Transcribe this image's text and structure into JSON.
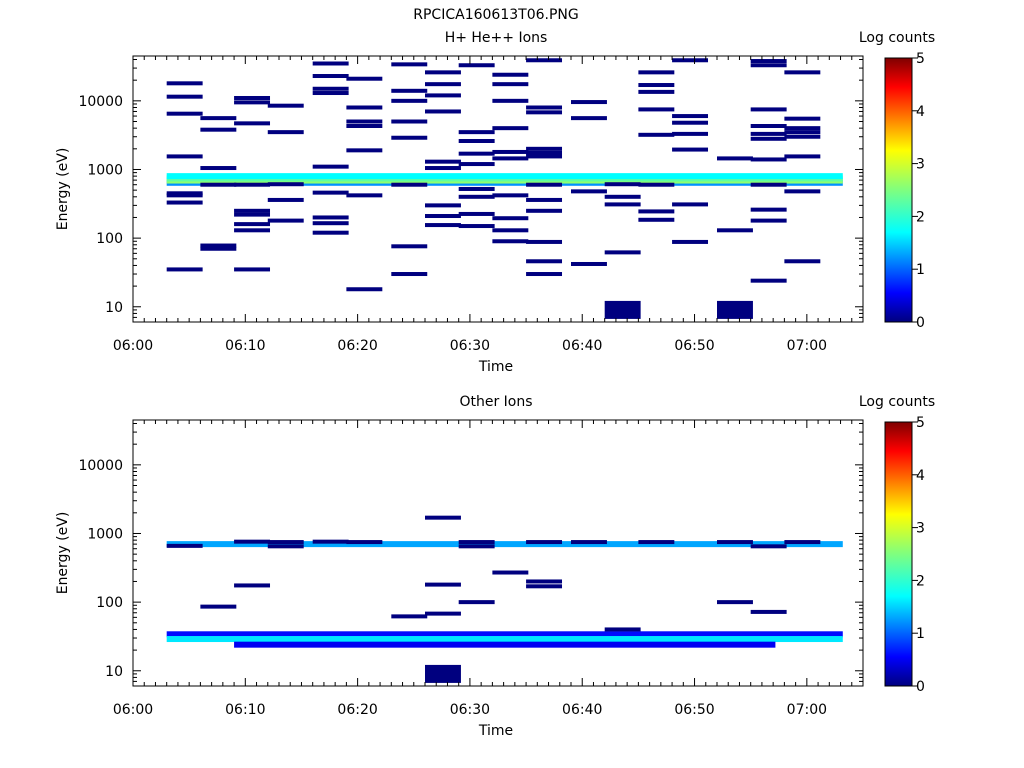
{
  "figure_title": "RPCICA160613T06.PNG",
  "chart_data": [
    {
      "type": "heatmap",
      "title": "H+ He++ Ions",
      "xlabel": "Time",
      "ylabel": "Energy (eV)",
      "y_scale": "log",
      "ylim": [
        6,
        45000
      ],
      "x_ticks": [
        "06:00",
        "06:10",
        "06:20",
        "06:30",
        "06:40",
        "06:50",
        "07:00"
      ],
      "y_ticks": [
        {
          "value": 10,
          "label": "10"
        },
        {
          "value": 100,
          "label": "100"
        },
        {
          "value": 1000,
          "label": "1000"
        },
        {
          "value": 10000,
          "label": "10000"
        }
      ],
      "colorbar": {
        "label": "Log counts",
        "range": [
          0,
          5
        ],
        "ticks": [
          "0",
          "1",
          "2",
          "3",
          "4",
          "5"
        ]
      },
      "bands": [
        {
          "t0": "06:03",
          "t1": "07:00",
          "e": 640,
          "log_counts": 1.2
        },
        {
          "t0": "06:03",
          "t1": "07:00",
          "e": 690,
          "log_counts": 2.6
        },
        {
          "t0": "06:03",
          "t1": "07:00",
          "e": 740,
          "log_counts": 2.3
        },
        {
          "t0": "06:03",
          "t1": "07:00",
          "e": 800,
          "log_counts": 1.7
        }
      ],
      "cells": [
        {
          "t": "06:03",
          "e": [
            18000,
            11500,
            6500,
            1550,
            450,
            420,
            330,
            35
          ]
        },
        {
          "t": "06:06",
          "e": [
            5600,
            3800,
            1050,
            600,
            70,
            78
          ]
        },
        {
          "t": "06:09",
          "e": [
            11000,
            9500,
            4700,
            600,
            250,
            220,
            160,
            130,
            35
          ]
        },
        {
          "t": "06:12",
          "e": [
            8500,
            3500,
            610,
            360,
            180
          ]
        },
        {
          "t": "06:16",
          "e": [
            35000,
            23000,
            15000,
            13000,
            1100,
            460,
            200,
            165,
            120
          ]
        },
        {
          "t": "06:19",
          "e": [
            21000,
            8000,
            5000,
            4300,
            1900,
            420,
            18
          ]
        },
        {
          "t": "06:23",
          "e": [
            34000,
            14000,
            10000,
            5000,
            2900,
            600,
            76,
            30
          ]
        },
        {
          "t": "06:26",
          "e": [
            26000,
            17500,
            12000,
            7000,
            1300,
            1050,
            300,
            210,
            155
          ]
        },
        {
          "t": "06:29",
          "e": [
            33000,
            3500,
            2600,
            1700,
            1200,
            520,
            400,
            225,
            150
          ]
        },
        {
          "t": "06:32",
          "e": [
            24000,
            17500,
            10000,
            4000,
            1800,
            1450,
            420,
            195,
            130,
            90
          ]
        },
        {
          "t": "06:35",
          "e": [
            39000,
            8000,
            6800,
            2000,
            1750,
            1550,
            600,
            360,
            250,
            88,
            46,
            30
          ]
        },
        {
          "t": "06:39",
          "e": [
            9600,
            5600,
            480,
            42
          ]
        },
        {
          "t": "06:42",
          "e": [
            610,
            400,
            310,
            62,
            9
          ]
        },
        {
          "t": "06:45",
          "e": [
            26000,
            17000,
            13500,
            7500,
            3200,
            600,
            245,
            185
          ]
        },
        {
          "t": "06:48",
          "e": [
            39000,
            6000,
            4800,
            3300,
            1950,
            310,
            88
          ]
        },
        {
          "t": "06:52",
          "e": [
            1450,
            130,
            9
          ]
        },
        {
          "t": "06:55",
          "e": [
            38000,
            33000,
            7500,
            4300,
            3300,
            2800,
            1400,
            600,
            260,
            180,
            24
          ]
        },
        {
          "t": "06:58",
          "e": [
            26000,
            5500,
            4000,
            3500,
            3000,
            1550,
            480,
            46
          ]
        }
      ]
    },
    {
      "type": "heatmap",
      "title": "Other Ions",
      "xlabel": "Time",
      "ylabel": "Energy (eV)",
      "y_scale": "log",
      "ylim": [
        6,
        45000
      ],
      "x_ticks": [
        "06:00",
        "06:10",
        "06:20",
        "06:30",
        "06:40",
        "06:50",
        "07:00"
      ],
      "y_ticks": [
        {
          "value": 10,
          "label": "10"
        },
        {
          "value": 100,
          "label": "100"
        },
        {
          "value": 1000,
          "label": "1000"
        },
        {
          "value": 10000,
          "label": "10000"
        }
      ],
      "colorbar": {
        "label": "Log counts",
        "range": [
          0,
          5
        ],
        "ticks": [
          "0",
          "1",
          "2",
          "3",
          "4",
          "5"
        ]
      },
      "bands": [
        {
          "t0": "06:03",
          "t1": "07:00",
          "e": 700,
          "log_counts": 1.3
        },
        {
          "t0": "06:03",
          "t1": "07:00",
          "e": 34,
          "log_counts": 0.6
        },
        {
          "t0": "06:03",
          "t1": "07:00",
          "e": 29,
          "log_counts": 1.6
        },
        {
          "t0": "06:09",
          "t1": "06:54",
          "e": 24,
          "log_counts": 0.5
        }
      ],
      "cells": [
        {
          "t": "06:03",
          "e": [
            660
          ]
        },
        {
          "t": "06:06",
          "e": [
            86
          ]
        },
        {
          "t": "06:09",
          "e": [
            760,
            175
          ]
        },
        {
          "t": "06:12",
          "e": [
            750,
            650
          ]
        },
        {
          "t": "06:16",
          "e": [
            760
          ]
        },
        {
          "t": "06:19",
          "e": [
            750
          ]
        },
        {
          "t": "06:23",
          "e": [
            62
          ]
        },
        {
          "t": "06:26",
          "e": [
            1700,
            180,
            68,
            9
          ]
        },
        {
          "t": "06:29",
          "e": [
            750,
            650,
            100
          ]
        },
        {
          "t": "06:32",
          "e": [
            270
          ]
        },
        {
          "t": "06:35",
          "e": [
            750,
            200,
            170
          ]
        },
        {
          "t": "06:39",
          "e": [
            750
          ]
        },
        {
          "t": "06:42",
          "e": [
            40
          ]
        },
        {
          "t": "06:45",
          "e": [
            750
          ]
        },
        {
          "t": "06:52",
          "e": [
            750,
            100
          ]
        },
        {
          "t": "06:55",
          "e": [
            650,
            72
          ]
        },
        {
          "t": "06:58",
          "e": [
            750
          ]
        }
      ]
    }
  ]
}
